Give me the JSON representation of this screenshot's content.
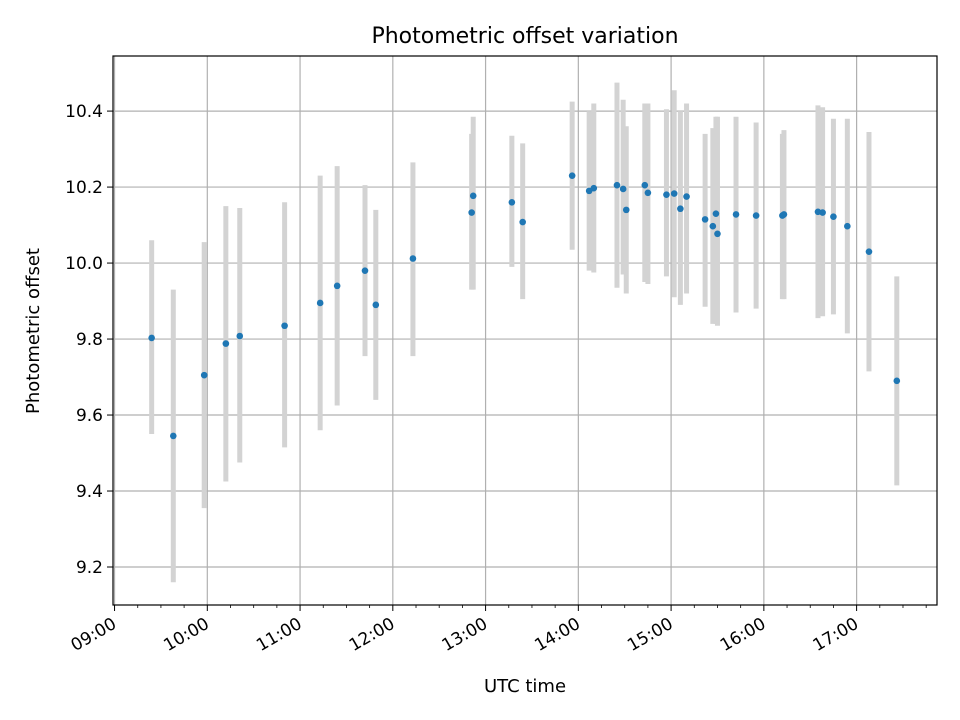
{
  "chart_data": {
    "type": "scatter",
    "title": "Photometric offset variation",
    "xlabel": "UTC time",
    "ylabel": "Photometric offset",
    "x_ticks": [
      "09:00",
      "10:00",
      "11:00",
      "12:00",
      "13:00",
      "14:00",
      "15:00",
      "16:00",
      "17:00"
    ],
    "y_ticks": [
      "9.2",
      "9.4",
      "9.6",
      "9.8",
      "10.0",
      "10.2",
      "10.4"
    ],
    "xlim": [
      "08:59",
      "17:52"
    ],
    "ylim": [
      9.1,
      10.545
    ],
    "grid": true,
    "colors": {
      "point": "#1f77b4",
      "error_bar": "#d3d3d3"
    },
    "series": [
      {
        "x": [
          "09:24",
          "09:38",
          "09:58",
          "10:12",
          "10:21",
          "10:50",
          "11:13",
          "11:24",
          "11:42",
          "11:49",
          "12:13",
          "12:51",
          "12:52",
          "13:17",
          "13:24",
          "13:56",
          "14:07",
          "14:10",
          "14:25",
          "14:29",
          "14:31",
          "14:43",
          "14:45",
          "14:57",
          "15:02",
          "15:06",
          "15:10",
          "15:22",
          "15:27",
          "15:29",
          "15:30",
          "15:42",
          "15:55",
          "16:12",
          "16:13",
          "16:35",
          "16:38",
          "16:45",
          "16:54",
          "17:08",
          "17:26"
        ],
        "y": [
          9.803,
          9.545,
          9.705,
          9.788,
          9.808,
          9.835,
          9.895,
          9.94,
          9.98,
          9.89,
          10.012,
          10.133,
          10.177,
          10.16,
          10.108,
          10.23,
          10.19,
          10.197,
          10.205,
          10.195,
          10.14,
          10.205,
          10.185,
          10.18,
          10.183,
          10.143,
          10.175,
          10.115,
          10.097,
          10.13,
          10.077,
          10.128,
          10.125,
          10.125,
          10.128,
          10.135,
          10.133,
          10.122,
          10.097,
          10.03,
          9.69
        ],
        "yerr_low": [
          9.55,
          9.16,
          9.355,
          9.425,
          9.475,
          9.515,
          9.56,
          9.625,
          9.755,
          9.64,
          9.755,
          9.93,
          9.93,
          9.99,
          9.905,
          10.035,
          9.98,
          9.975,
          9.935,
          9.97,
          9.92,
          9.95,
          9.945,
          9.965,
          9.91,
          9.89,
          9.92,
          9.885,
          9.84,
          9.84,
          9.835,
          9.87,
          9.88,
          9.905,
          9.905,
          9.855,
          9.86,
          9.865,
          9.815,
          9.715,
          9.415
        ],
        "yerr_high": [
          10.06,
          9.93,
          10.055,
          10.15,
          10.145,
          10.16,
          10.23,
          10.255,
          10.205,
          10.14,
          10.265,
          10.34,
          10.385,
          10.335,
          10.315,
          10.425,
          10.4,
          10.42,
          10.475,
          10.43,
          10.36,
          10.42,
          10.42,
          10.405,
          10.455,
          10.4,
          10.42,
          10.34,
          10.355,
          10.385,
          10.385,
          10.385,
          10.37,
          10.34,
          10.35,
          10.415,
          10.41,
          10.38,
          10.38,
          10.345,
          9.965
        ]
      }
    ]
  }
}
